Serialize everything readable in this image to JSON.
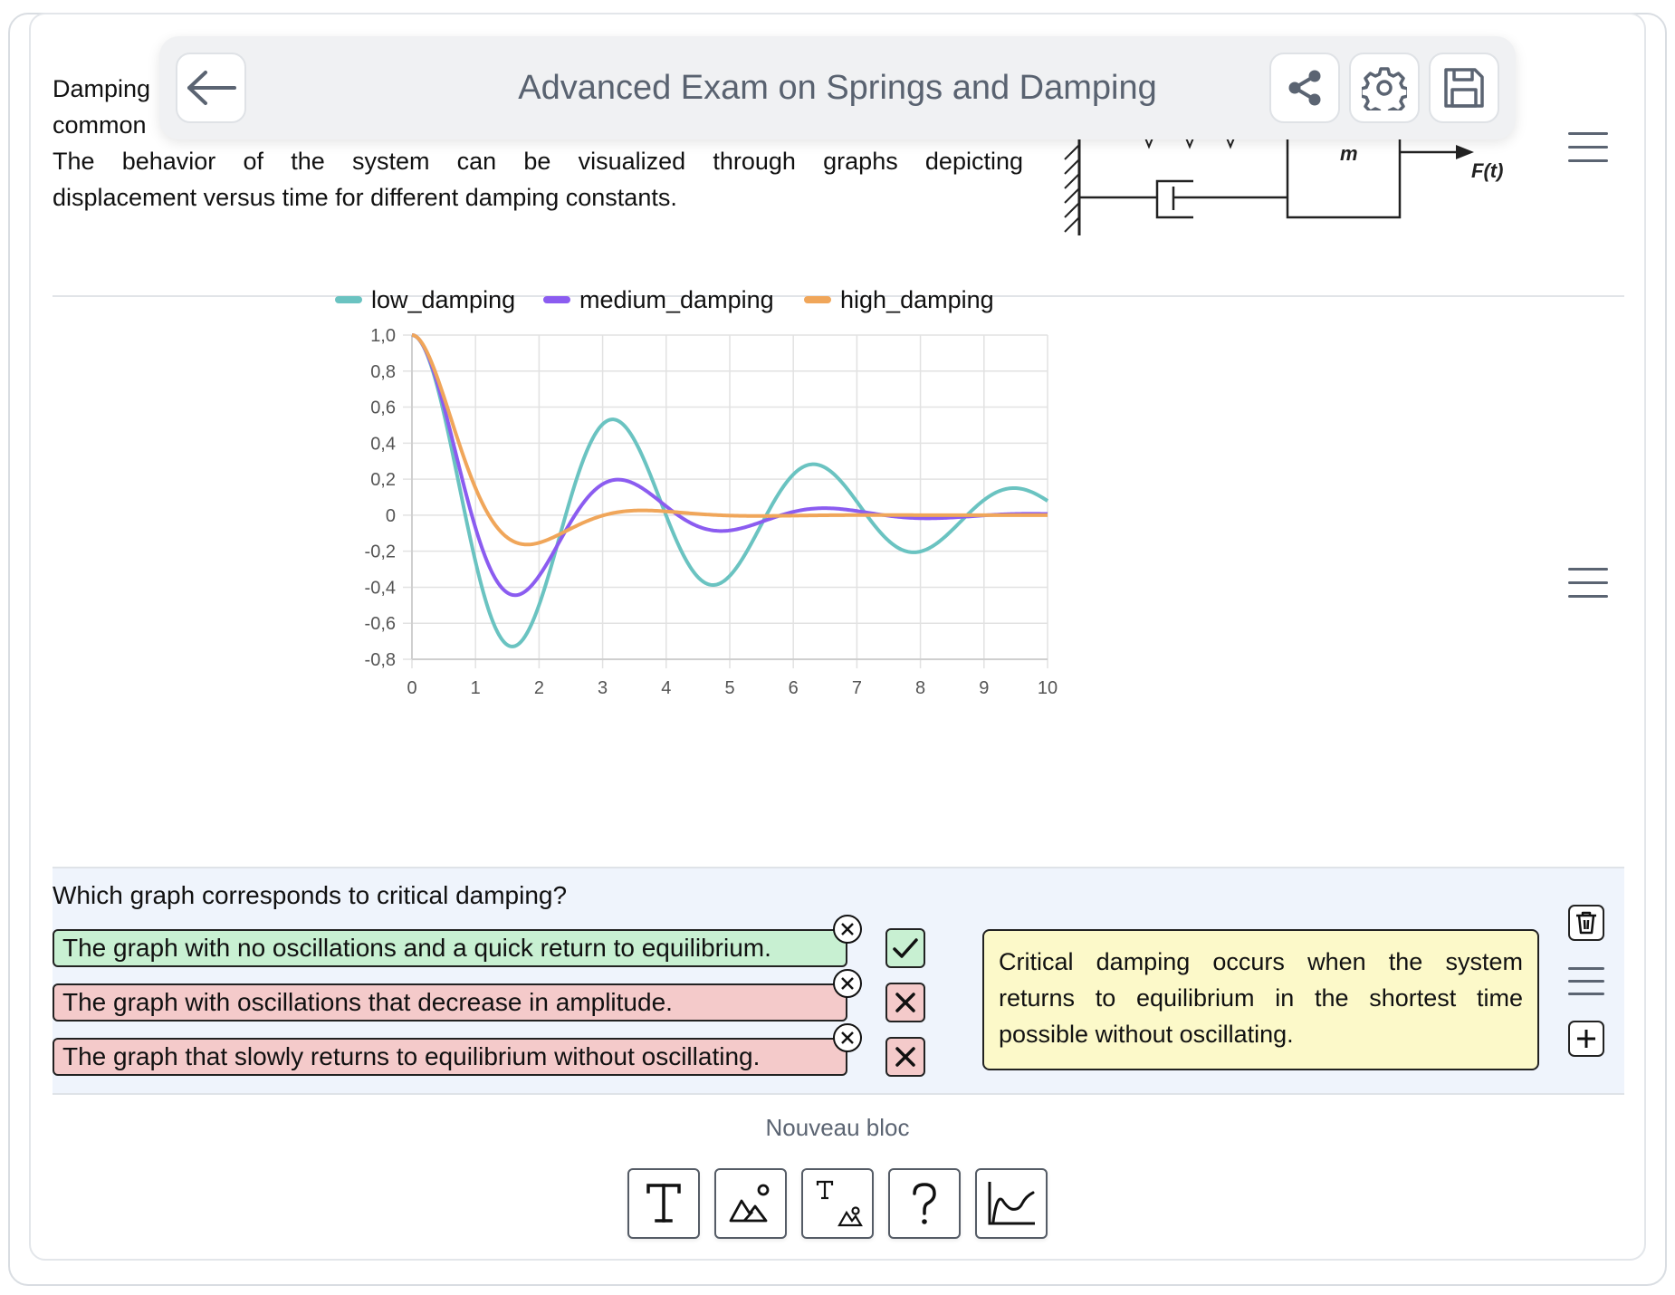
{
  "header": {
    "title": "Advanced Exam on Springs and Damping",
    "back_icon": "arrow-left-icon",
    "share_icon": "share-icon",
    "settings_icon": "gear-icon",
    "save_icon": "save-icon"
  },
  "intro": {
    "line1": "Damping",
    "line2": "common",
    "para_line1": "The behavior of the system can be visualized through graphs depicting",
    "para_line2": "displacement versus time for different damping constants."
  },
  "diagram": {
    "mass_label": "m",
    "force_label": "F(t)"
  },
  "chart_data": {
    "type": "line",
    "x": [
      0,
      1,
      2,
      3,
      4,
      5,
      6,
      7,
      8,
      9,
      10
    ],
    "xticks": [
      "0",
      "1",
      "2",
      "3",
      "4",
      "5",
      "6",
      "7",
      "8",
      "9",
      "10"
    ],
    "yticks": [
      "1,0",
      "0,8",
      "0,6",
      "0,4",
      "0,2",
      "0",
      "-0,2",
      "-0,4",
      "-0,6",
      "-0,8"
    ],
    "ylim": [
      -0.8,
      1.0
    ],
    "xlim": [
      0,
      10
    ],
    "grid": true,
    "legend": "top",
    "series": [
      {
        "name": "low_damping",
        "color": "#6ac3c1",
        "zeta": 0.1,
        "omega": 2.0
      },
      {
        "name": "medium_damping",
        "color": "#8b5cf0",
        "zeta": 0.25,
        "omega": 2.0
      },
      {
        "name": "high_damping",
        "color": "#f0a65a",
        "zeta": 0.5,
        "omega": 2.0
      }
    ]
  },
  "question": {
    "text": "Which graph corresponds to critical damping?",
    "answers": [
      {
        "text": "The graph with no oscillations and a quick return to equilibrium.",
        "correct": true
      },
      {
        "text": "The graph with oscillations that decrease in amplitude.",
        "correct": false
      },
      {
        "text": "The graph that slowly returns to equilibrium without oscillating.",
        "correct": false
      }
    ],
    "explanation": "Critical damping occurs when the system returns to equilibrium in the shortest time possible without oscillating."
  },
  "new_block": {
    "label": "Nouveau bloc",
    "tools": [
      "text-tool-icon",
      "image-tool-icon",
      "text-image-tool-icon",
      "question-tool-icon",
      "chart-tool-icon"
    ]
  }
}
